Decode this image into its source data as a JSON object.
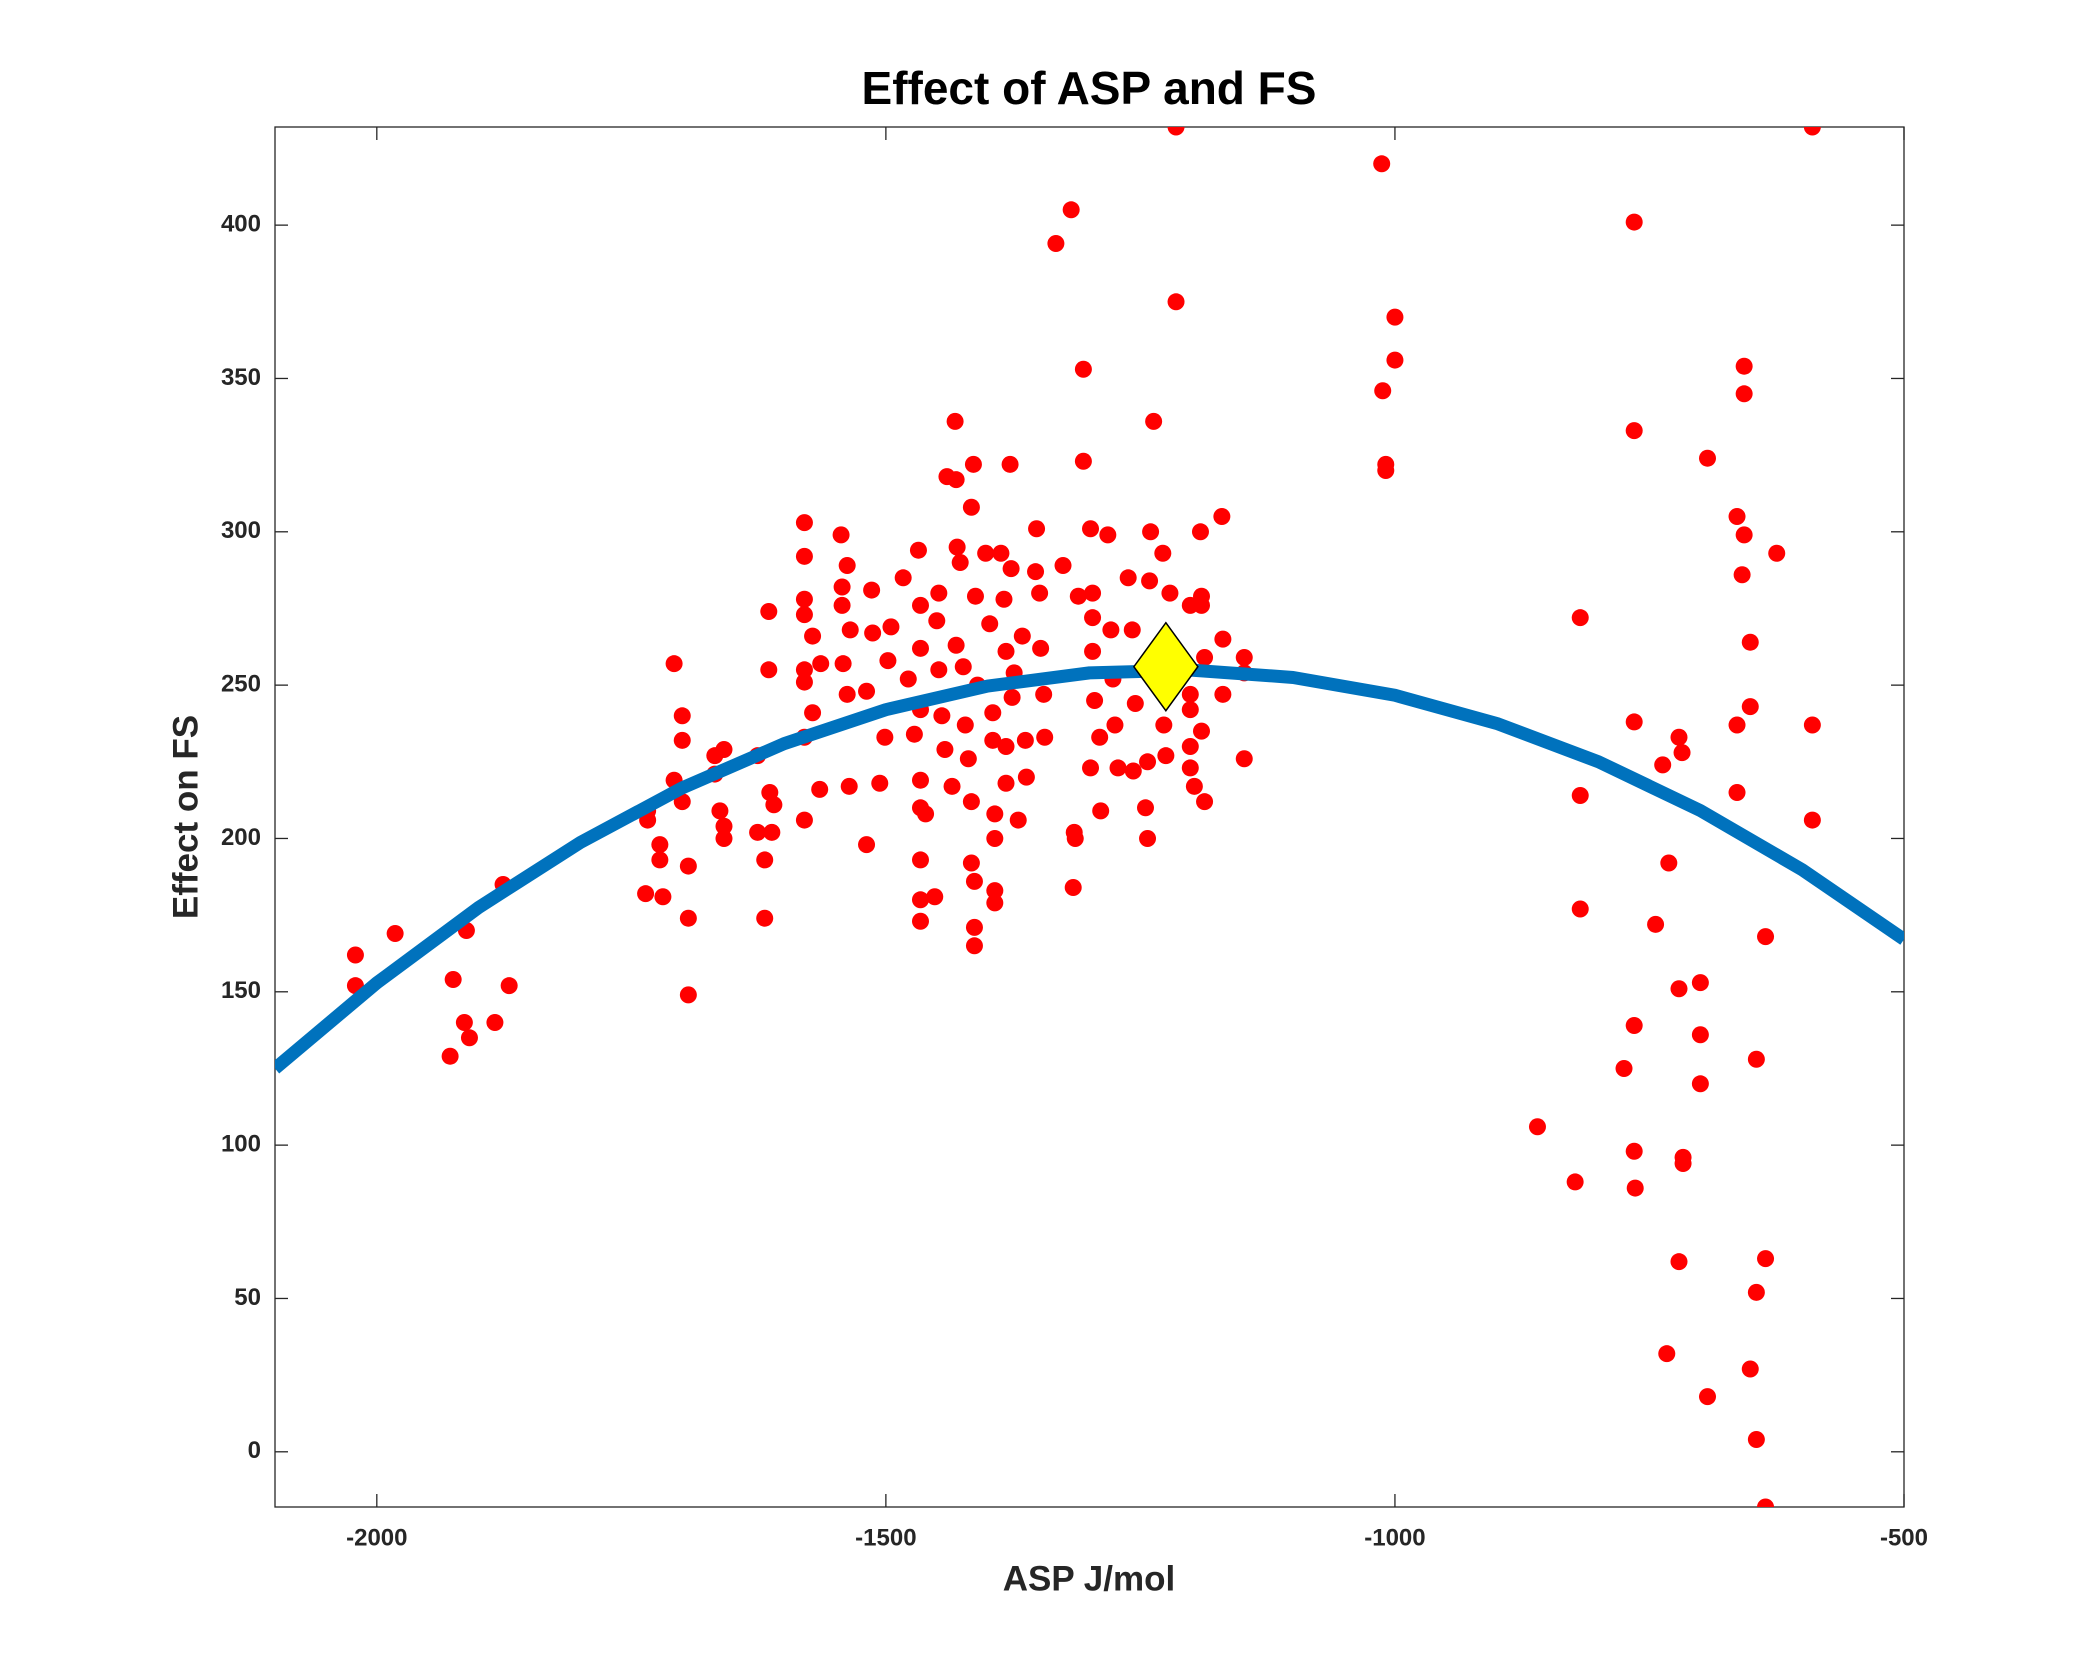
{
  "chart_data": {
    "type": "scatter",
    "title": "Effect of ASP and FS",
    "xlabel": "ASP J/mol",
    "ylabel": "Effect on FS",
    "xlim": [
      -2100,
      -500
    ],
    "ylim": [
      -18,
      432
    ],
    "xticks": [
      -2000,
      -1500,
      -1000,
      -500
    ],
    "yticks": [
      0,
      50,
      100,
      150,
      200,
      250,
      300,
      350,
      400
    ],
    "series": [
      {
        "type": "scatter",
        "color": "#ff0000",
        "x": [
          -1215,
          -590,
          -1013,
          -1318,
          -1333,
          -765,
          -1215,
          -1000,
          -1000,
          -1012,
          -1306,
          -657,
          -657,
          -765,
          -1237,
          -1009,
          -1009,
          -1306,
          -693,
          -664,
          -657,
          -625,
          -659,
          -651,
          -818,
          -651,
          -664,
          -590,
          -765,
          -721,
          -718,
          -737,
          -818,
          -664,
          -590,
          -731,
          -818,
          -744,
          -636,
          -700,
          -721,
          -765,
          -700,
          -645,
          -775,
          -700,
          -860,
          -765,
          -717,
          -717,
          -823,
          -764,
          -636,
          -721,
          -645,
          -733,
          -651,
          -693,
          -645,
          -636,
          -2021,
          -2021,
          -1982,
          -1925,
          -1912,
          -1914,
          -1909,
          -1928,
          -1884,
          -1870,
          -1876,
          -1708,
          -1734,
          -1734,
          -1722,
          -1722,
          -1736,
          -1719,
          -1700,
          -1700,
          -1708,
          -1700,
          -1694,
          -1694,
          -1694,
          -1668,
          -1668,
          -1659,
          -1663,
          -1659,
          -1659,
          -1626,
          -1626,
          -1619,
          -1619,
          -1615,
          -1615,
          -1614,
          -1610,
          -1612,
          -1580,
          -1580,
          -1580,
          -1580,
          -1580,
          -1580,
          -1580,
          -1580,
          -1572,
          -1572,
          -1565,
          -1564,
          -1544,
          -1538,
          -1543,
          -1543,
          -1535,
          -1542,
          -1538,
          -1536,
          -1519,
          -1514,
          -1519,
          -1513,
          -1506,
          -1501,
          -1498,
          -1495,
          -1483,
          -1478,
          -1472,
          -1468,
          -1466,
          -1466,
          -1466,
          -1466,
          -1466,
          -1466,
          -1466,
          -1466,
          -1452,
          -1461,
          -1450,
          -1448,
          -1448,
          -1445,
          -1442,
          -1435,
          -1440,
          -1431,
          -1432,
          -1430,
          -1427,
          -1431,
          -1424,
          -1422,
          -1419,
          -1416,
          -1414,
          -1416,
          -1412,
          -1410,
          -1416,
          -1413,
          -1413,
          -1413,
          -1402,
          -1398,
          -1395,
          -1395,
          -1393,
          -1393,
          -1393,
          -1393,
          -1387,
          -1384,
          -1382,
          -1382,
          -1382,
          -1378,
          -1377,
          -1374,
          -1376,
          -1370,
          -1366,
          -1363,
          -1362,
          -1352,
          -1353,
          -1349,
          -1348,
          -1345,
          -1344,
          -1326,
          -1311,
          -1299,
          -1297,
          -1297,
          -1297,
          -1295,
          -1290,
          -1289,
          -1299,
          -1282,
          -1279,
          -1277,
          -1275,
          -1272,
          -1262,
          -1258,
          -1257,
          -1255,
          -1243,
          -1241,
          -1240,
          -1245,
          -1243,
          -1228,
          -1227,
          -1225,
          -1221,
          -1201,
          -1201,
          -1201,
          -1201,
          -1201,
          -1197,
          -1191,
          -1190,
          -1190,
          -1187,
          -1190,
          -1187,
          -1170,
          -1169,
          -1169,
          -1148,
          -1148,
          -1148,
          -1316,
          -1315,
          -1314
        ],
        "values": [
          432,
          432,
          420,
          405,
          394,
          401,
          375,
          370,
          356,
          346,
          353,
          354,
          345,
          333,
          336,
          322,
          320,
          323,
          324,
          305,
          299,
          293,
          286,
          264,
          272,
          243,
          237,
          237,
          238,
          233,
          228,
          224,
          214,
          215,
          206,
          192,
          177,
          172,
          168,
          153,
          151,
          139,
          136,
          128,
          125,
          120,
          106,
          98,
          96,
          94,
          88,
          86,
          63,
          62,
          52,
          32,
          27,
          18,
          4,
          -18,
          162,
          152,
          169,
          154,
          170,
          140,
          135,
          129,
          140,
          152,
          185,
          257,
          209,
          206,
          198,
          193,
          182,
          181,
          240,
          232,
          219,
          212,
          191,
          174,
          149,
          227,
          221,
          229,
          209,
          204,
          200,
          227,
          202,
          193,
          174,
          274,
          255,
          215,
          211,
          202,
          303,
          292,
          278,
          273,
          255,
          251,
          233,
          206,
          241,
          266,
          216,
          257,
          299,
          289,
          282,
          276,
          268,
          257,
          247,
          217,
          248,
          281,
          198,
          267,
          218,
          233,
          258,
          269,
          285,
          252,
          234,
          294,
          276,
          262,
          242,
          219,
          210,
          193,
          180,
          173,
          181,
          208,
          271,
          280,
          255,
          240,
          229,
          217,
          318,
          317,
          336,
          295,
          290,
          263,
          256,
          237,
          226,
          212,
          322,
          308,
          279,
          250,
          192,
          186,
          171,
          165,
          293,
          270,
          241,
          232,
          208,
          200,
          183,
          179,
          293,
          278,
          261,
          230,
          218,
          322,
          288,
          254,
          246,
          206,
          266,
          232,
          220,
          301,
          287,
          280,
          262,
          247,
          233,
          289,
          279,
          301,
          280,
          272,
          261,
          245,
          233,
          209,
          223,
          299,
          268,
          252,
          237,
          223,
          285,
          268,
          222,
          244,
          225,
          284,
          300,
          210,
          200,
          293,
          237,
          227,
          280,
          276,
          247,
          242,
          230,
          223,
          217,
          300,
          279,
          276,
          259,
          235,
          212,
          305,
          265,
          247,
          259,
          254,
          226,
          184,
          202,
          200
        ]
      },
      {
        "type": "line",
        "color": "#0072bd",
        "x": [
          -2100,
          -2000,
          -1900,
          -1800,
          -1700,
          -1600,
          -1500,
          -1400,
          -1300,
          -1200,
          -1100,
          -1000,
          -900,
          -800,
          -700,
          -600,
          -500
        ],
        "values": [
          125.0,
          152.9,
          177.5,
          198.7,
          216.5,
          230.9,
          242.0,
          249.7,
          254.0,
          254.9,
          252.5,
          246.7,
          237.5,
          225.0,
          209.1,
          189.8,
          167.1
        ]
      },
      {
        "type": "diamond",
        "color": "#ffff00",
        "x": [
          -1225
        ],
        "values": [
          256
        ]
      }
    ]
  }
}
